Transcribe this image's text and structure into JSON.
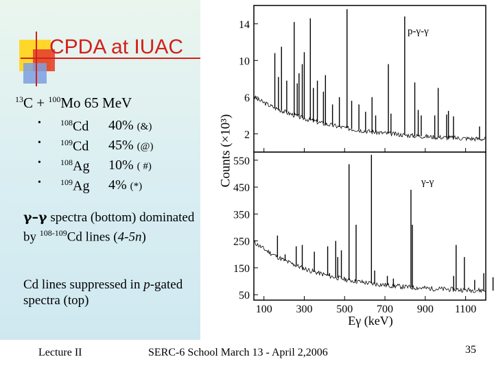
{
  "slide": {
    "title": "CPDA at IUAC",
    "reaction": {
      "a1": "13",
      "p1": "C + ",
      "a2": "100",
      "p2": "Mo 65 MeV"
    },
    "products": [
      {
        "mass": "108",
        "element": "Cd",
        "percent": "40%",
        "tag": "(&)"
      },
      {
        "mass": "109",
        "element": "Cd",
        "percent": "45%",
        "tag": "(@)"
      },
      {
        "mass": "108",
        "element": "Ag",
        "percent": "10%",
        "tag": "( #)"
      },
      {
        "mass": "109",
        "element": "Ag",
        "percent": "4%",
        "tag": "(*)"
      }
    ],
    "para1": {
      "sym": "γ–γ",
      "t1": " spectra (bottom) dominated by ",
      "sup": "108-109",
      "t2": "Cd lines (",
      "t3": "4-5n",
      "t4": ")"
    },
    "para2": {
      "t1": "Cd lines suppressed in ",
      "t2": "p",
      "t3": "-gated spectra (top)"
    },
    "footer": {
      "left": "Lecture II",
      "middle": "SERC-6 School March 13 - April 2,2006",
      "page": "35"
    }
  },
  "chart_data": [
    {
      "type": "line",
      "panel": "top",
      "label": "p-γ-γ",
      "xlim": [
        50,
        1200
      ],
      "ylim": [
        0,
        16
      ],
      "yticks": [
        2,
        6,
        10,
        14
      ],
      "ylabel": "Counts (×10³)",
      "peaks": [
        {
          "x": 154,
          "y": 10.8
        },
        {
          "x": 172,
          "y": 8.2
        },
        {
          "x": 187,
          "y": 11.5
        },
        {
          "x": 213,
          "y": 7.8
        },
        {
          "x": 250,
          "y": 14.2
        },
        {
          "x": 265,
          "y": 7.5
        },
        {
          "x": 274,
          "y": 8.6
        },
        {
          "x": 290,
          "y": 9.6
        },
        {
          "x": 300,
          "y": 10.9
        },
        {
          "x": 330,
          "y": 14.6
        },
        {
          "x": 345,
          "y": 7.0
        },
        {
          "x": 365,
          "y": 7.8
        },
        {
          "x": 395,
          "y": 6.6
        },
        {
          "x": 405,
          "y": 8.4
        },
        {
          "x": 440,
          "y": 5.2
        },
        {
          "x": 474,
          "y": 6.0
        },
        {
          "x": 512,
          "y": 15.6
        },
        {
          "x": 535,
          "y": 5.6
        },
        {
          "x": 571,
          "y": 5.2
        },
        {
          "x": 604,
          "y": 4.4
        },
        {
          "x": 636,
          "y": 6.0
        },
        {
          "x": 654,
          "y": 4.0
        },
        {
          "x": 717,
          "y": 9.6
        },
        {
          "x": 730,
          "y": 4.2
        },
        {
          "x": 798,
          "y": 14.8
        },
        {
          "x": 848,
          "y": 7.6
        },
        {
          "x": 865,
          "y": 4.6
        },
        {
          "x": 880,
          "y": 4.0
        },
        {
          "x": 947,
          "y": 4.0
        },
        {
          "x": 964,
          "y": 7.0
        },
        {
          "x": 1006,
          "y": 4.1
        },
        {
          "x": 1015,
          "y": 4.5
        },
        {
          "x": 1040,
          "y": 3.9
        },
        {
          "x": 1169,
          "y": 2.8
        }
      ]
    },
    {
      "type": "line",
      "panel": "bottom",
      "label": "γ-γ",
      "xlim": [
        50,
        1200
      ],
      "ylim": [
        30,
        580
      ],
      "yticks": [
        50,
        150,
        250,
        350,
        450,
        550
      ],
      "xticks": [
        100,
        300,
        500,
        700,
        900,
        1100
      ],
      "xlabel": "Eγ (keV)",
      "peaks": [
        {
          "x": 167,
          "y": 270
        },
        {
          "x": 205,
          "y": 200
        },
        {
          "x": 248,
          "y": 165
        },
        {
          "x": 260,
          "y": 230
        },
        {
          "x": 290,
          "y": 235
        },
        {
          "x": 350,
          "y": 210
        },
        {
          "x": 416,
          "y": 230
        },
        {
          "x": 425,
          "y": 130
        },
        {
          "x": 456,
          "y": 250
        },
        {
          "x": 466,
          "y": 190
        },
        {
          "x": 484,
          "y": 215
        },
        {
          "x": 522,
          "y": 535
        },
        {
          "x": 557,
          "y": 310
        },
        {
          "x": 633,
          "y": 570
        },
        {
          "x": 649,
          "y": 140
        },
        {
          "x": 712,
          "y": 120
        },
        {
          "x": 742,
          "y": 110
        },
        {
          "x": 829,
          "y": 440
        },
        {
          "x": 836,
          "y": 310
        },
        {
          "x": 1041,
          "y": 120
        },
        {
          "x": 1053,
          "y": 235
        },
        {
          "x": 1094,
          "y": 190
        },
        {
          "x": 1145,
          "y": 105
        },
        {
          "x": 1190,
          "y": 130
        },
        {
          "x": 1236,
          "y": 115
        }
      ]
    }
  ]
}
